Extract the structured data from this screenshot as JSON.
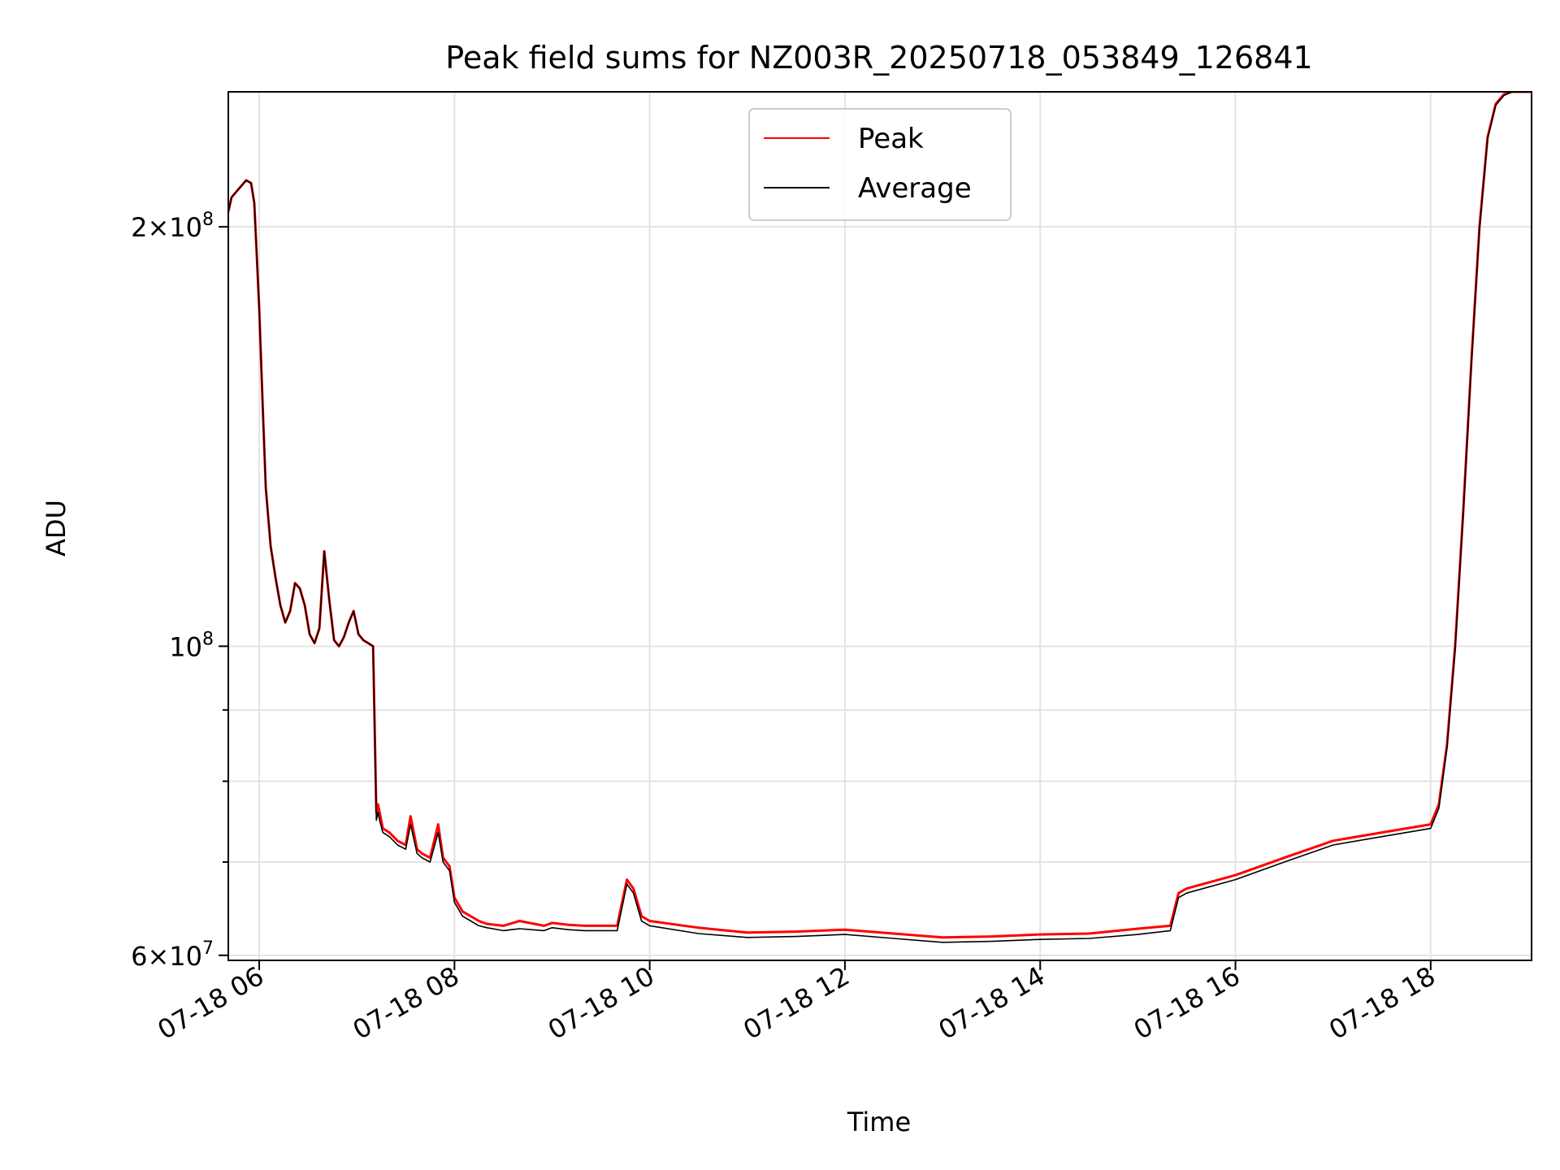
{
  "chart_data": {
    "type": "line",
    "title": "Peak field sums for NZ003R_20250718_053849_126841",
    "xlabel": "Time",
    "ylabel": "ADU",
    "yscale": "log",
    "ylim": [
      59500000,
      250000000
    ],
    "xlim": [
      "07-18 05:41",
      "07-18 19:02"
    ],
    "grid": true,
    "legend_position": "top-center",
    "x_ticks": [
      {
        "label": "07-18 06",
        "t": "06:00"
      },
      {
        "label": "07-18 08",
        "t": "08:00"
      },
      {
        "label": "07-18 10",
        "t": "10:00"
      },
      {
        "label": "07-18 12",
        "t": "12:00"
      },
      {
        "label": "07-18 14",
        "t": "14:00"
      },
      {
        "label": "07-18 16",
        "t": "16:00"
      },
      {
        "label": "07-18 18",
        "t": "18:00"
      }
    ],
    "y_major_ticks": [
      {
        "value": 60000000,
        "base": "6",
        "exp": "7"
      },
      {
        "value": 100000000,
        "base": "",
        "exp": "8"
      },
      {
        "value": 200000000,
        "base": "2",
        "exp": "8"
      }
    ],
    "y_minor_ticks": [
      70000000,
      80000000,
      90000000
    ],
    "series": [
      {
        "name": "Peak",
        "color": "#ff0000",
        "x": [
          "05:41",
          "05:43",
          "05:46",
          "05:49",
          "05:52",
          "05:55",
          "05:57",
          "06:00",
          "06:02",
          "06:04",
          "06:07",
          "06:10",
          "06:13",
          "06:16",
          "06:19",
          "06:22",
          "06:25",
          "06:28",
          "06:31",
          "06:34",
          "06:37",
          "06:40",
          "06:43",
          "06:46",
          "06:49",
          "06:52",
          "06:55",
          "06:58",
          "07:01",
          "07:04",
          "07:07",
          "07:10",
          "07:12",
          "07:13",
          "07:14",
          "07:16",
          "07:20",
          "07:25",
          "07:30",
          "07:33",
          "07:37",
          "07:40",
          "07:45",
          "07:50",
          "07:53",
          "07:57",
          "08:00",
          "08:05",
          "08:10",
          "08:15",
          "08:20",
          "08:30",
          "08:40",
          "08:55",
          "09:00",
          "09:10",
          "09:20",
          "09:40",
          "09:46",
          "09:48",
          "09:50",
          "09:55",
          "10:00",
          "10:30",
          "11:00",
          "11:30",
          "12:00",
          "12:30",
          "13:00",
          "13:30",
          "14:00",
          "14:30",
          "15:00",
          "15:20",
          "15:25",
          "15:30",
          "16:00",
          "16:30",
          "17:00",
          "17:30",
          "18:00",
          "18:05",
          "18:10",
          "18:15",
          "18:20",
          "18:25",
          "18:30",
          "18:35",
          "18:40",
          "18:45",
          "18:50",
          "18:55",
          "19:02"
        ],
        "values": [
          205000000,
          210000000,
          212000000,
          214000000,
          216000000,
          215000000,
          208000000,
          175000000,
          150000000,
          130000000,
          118000000,
          112000000,
          107000000,
          104000000,
          106000000,
          111000000,
          110000000,
          107000000,
          102000000,
          100500000,
          103000000,
          117000000,
          108000000,
          101000000,
          100000000,
          101500000,
          104000000,
          106000000,
          102000000,
          101000000,
          100500000,
          100000000,
          76000000,
          77000000,
          76000000,
          74000000,
          73500000,
          72500000,
          72000000,
          75500000,
          71500000,
          71000000,
          70500000,
          74500000,
          70500000,
          69500000,
          66000000,
          64500000,
          64000000,
          63500000,
          63200000,
          63000000,
          63500000,
          63000000,
          63300000,
          63100000,
          63000000,
          63000000,
          68000000,
          67500000,
          67000000,
          64000000,
          63500000,
          62800000,
          62300000,
          62400000,
          62600000,
          62200000,
          61800000,
          61900000,
          62100000,
          62200000,
          62700000,
          63000000,
          66500000,
          67000000,
          68500000,
          70500000,
          72500000,
          73500000,
          74500000,
          77000000,
          85000000,
          100000000,
          125000000,
          160000000,
          200000000,
          232000000,
          245000000,
          249000000,
          250000000,
          250000000,
          250000000
        ]
      },
      {
        "name": "Average",
        "color": "#000000",
        "x": [
          "05:41",
          "05:43",
          "05:46",
          "05:49",
          "05:52",
          "05:55",
          "05:57",
          "06:00",
          "06:02",
          "06:04",
          "06:07",
          "06:10",
          "06:13",
          "06:16",
          "06:19",
          "06:22",
          "06:25",
          "06:28",
          "06:31",
          "06:34",
          "06:37",
          "06:40",
          "06:43",
          "06:46",
          "06:49",
          "06:52",
          "06:55",
          "06:58",
          "07:01",
          "07:04",
          "07:07",
          "07:10",
          "07:12",
          "07:13",
          "07:14",
          "07:16",
          "07:20",
          "07:25",
          "07:30",
          "07:33",
          "07:37",
          "07:40",
          "07:45",
          "07:50",
          "07:53",
          "07:57",
          "08:00",
          "08:05",
          "08:10",
          "08:15",
          "08:20",
          "08:30",
          "08:40",
          "08:55",
          "09:00",
          "09:10",
          "09:20",
          "09:40",
          "09:46",
          "09:48",
          "09:50",
          "09:55",
          "10:00",
          "10:30",
          "11:00",
          "11:30",
          "12:00",
          "12:30",
          "13:00",
          "13:30",
          "14:00",
          "14:30",
          "15:00",
          "15:20",
          "15:25",
          "15:30",
          "16:00",
          "16:30",
          "17:00",
          "17:30",
          "18:00",
          "18:05",
          "18:10",
          "18:15",
          "18:20",
          "18:25",
          "18:30",
          "18:35",
          "18:40",
          "18:45",
          "18:50",
          "18:55",
          "19:02"
        ],
        "values": [
          205000000,
          210000000,
          212000000,
          214000000,
          216000000,
          215000000,
          208000000,
          175000000,
          150000000,
          130000000,
          118000000,
          112000000,
          107000000,
          104000000,
          106000000,
          111000000,
          110000000,
          107000000,
          102000000,
          100500000,
          103000000,
          117000000,
          108000000,
          101000000,
          100000000,
          101500000,
          104000000,
          106000000,
          102000000,
          101000000,
          100500000,
          100000000,
          75000000,
          76000000,
          75000000,
          73500000,
          73000000,
          72000000,
          71500000,
          74500000,
          71000000,
          70500000,
          70000000,
          73500000,
          70000000,
          69000000,
          65500000,
          64000000,
          63500000,
          63000000,
          62800000,
          62500000,
          62700000,
          62500000,
          62800000,
          62600000,
          62500000,
          62500000,
          67500000,
          67000000,
          66500000,
          63500000,
          63000000,
          62200000,
          61800000,
          61900000,
          62100000,
          61700000,
          61300000,
          61400000,
          61600000,
          61700000,
          62100000,
          62500000,
          66000000,
          66500000,
          68000000,
          70000000,
          72000000,
          73000000,
          74000000,
          76500000,
          84500000,
          99500000,
          124500000,
          159500000,
          199500000,
          231500000,
          244500000,
          248500000,
          250000000,
          250000000,
          250000000
        ]
      }
    ]
  }
}
